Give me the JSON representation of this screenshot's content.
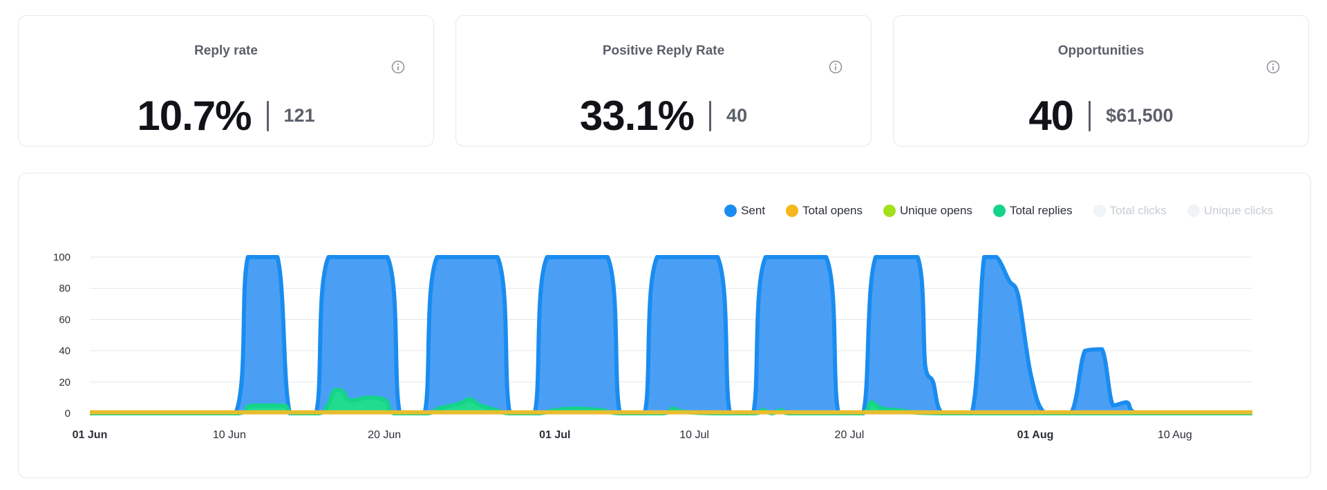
{
  "cards": [
    {
      "title": "Reply rate",
      "primary": "10.7%",
      "secondary": "121"
    },
    {
      "title": "Positive Reply Rate",
      "primary": "33.1%",
      "secondary": "40"
    },
    {
      "title": "Opportunities",
      "primary": "40",
      "secondary": "$61,500"
    }
  ],
  "legend": [
    {
      "label": "Sent",
      "color": "#1a8cf0",
      "active": true
    },
    {
      "label": "Total opens",
      "color": "#f5b71c",
      "active": true
    },
    {
      "label": "Unique opens",
      "color": "#a3e01d",
      "active": true
    },
    {
      "label": "Total replies",
      "color": "#14d38a",
      "active": true
    },
    {
      "label": "Total clicks",
      "color": "#eef4f8",
      "active": false
    },
    {
      "label": "Unique clicks",
      "color": "#eef4f8",
      "active": false
    }
  ],
  "chart_data": {
    "type": "area",
    "ylim": [
      0,
      100
    ],
    "yticks": [
      0,
      20,
      40,
      60,
      80,
      100
    ],
    "xlim_days": [
      0,
      75
    ],
    "xticks": [
      {
        "label": "01 Jun",
        "day": 0,
        "bold": true
      },
      {
        "label": "10 Jun",
        "day": 9,
        "bold": false
      },
      {
        "label": "20 Jun",
        "day": 19,
        "bold": false
      },
      {
        "label": "01 Jul",
        "day": 30,
        "bold": true
      },
      {
        "label": "10 Jul",
        "day": 39,
        "bold": false
      },
      {
        "label": "20 Jul",
        "day": 49,
        "bold": false
      },
      {
        "label": "01 Aug",
        "day": 61,
        "bold": true
      },
      {
        "label": "10 Aug",
        "day": 70,
        "bold": false
      }
    ],
    "grid": true,
    "legend_position": "top-right",
    "series": [
      {
        "name": "Sent",
        "color": "#1a8cf0",
        "fill": "#4a9ff5",
        "points": [
          [
            0,
            0
          ],
          [
            9.4,
            0
          ],
          [
            10.2,
            100
          ],
          [
            12.1,
            100
          ],
          [
            12.9,
            0
          ],
          [
            14.6,
            0
          ],
          [
            15.4,
            100
          ],
          [
            19.2,
            100
          ],
          [
            20,
            0
          ],
          [
            21.6,
            0
          ],
          [
            22.4,
            100
          ],
          [
            26.3,
            100
          ],
          [
            27.1,
            0
          ],
          [
            28.7,
            0
          ],
          [
            29.5,
            100
          ],
          [
            33.4,
            100
          ],
          [
            34.2,
            0
          ],
          [
            35.8,
            0
          ],
          [
            36.6,
            100
          ],
          [
            40.5,
            100
          ],
          [
            41.3,
            0
          ],
          [
            42.8,
            0
          ],
          [
            43.6,
            100
          ],
          [
            47.5,
            100
          ],
          [
            48.3,
            0
          ],
          [
            49.9,
            0
          ],
          [
            50.7,
            100
          ],
          [
            53.4,
            100
          ],
          [
            53.9,
            30
          ],
          [
            54.4,
            20
          ],
          [
            55,
            0
          ],
          [
            56.9,
            0
          ],
          [
            57.7,
            100
          ],
          [
            58.5,
            100
          ],
          [
            59.3,
            85
          ],
          [
            59.9,
            75
          ],
          [
            60.7,
            25
          ],
          [
            61.6,
            0
          ],
          [
            63.3,
            0
          ],
          [
            64.2,
            40
          ],
          [
            65.3,
            41
          ],
          [
            66,
            5
          ],
          [
            66.9,
            7
          ],
          [
            67.6,
            0
          ],
          [
            75,
            0
          ]
        ]
      },
      {
        "name": "Total replies",
        "color": "#14d38a",
        "fill": "#22dc8e",
        "points": [
          [
            0,
            0
          ],
          [
            9.6,
            0
          ],
          [
            10.4,
            5
          ],
          [
            12.5,
            5
          ],
          [
            13,
            0
          ],
          [
            14.8,
            0
          ],
          [
            15.3,
            4
          ],
          [
            15.8,
            15
          ],
          [
            16.3,
            14
          ],
          [
            16.8,
            8
          ],
          [
            18,
            10
          ],
          [
            19.1,
            8
          ],
          [
            19.6,
            0
          ],
          [
            21.8,
            0
          ],
          [
            22.5,
            3
          ],
          [
            23.8,
            6
          ],
          [
            24.5,
            9
          ],
          [
            25.2,
            5
          ],
          [
            26.2,
            2
          ],
          [
            27,
            0
          ],
          [
            29,
            0
          ],
          [
            30,
            2
          ],
          [
            31.2,
            3
          ],
          [
            33,
            2
          ],
          [
            34.1,
            0
          ],
          [
            37,
            0
          ],
          [
            37.6,
            3
          ],
          [
            38.3,
            1
          ],
          [
            40.2,
            0
          ],
          [
            42.9,
            0
          ],
          [
            43.4,
            2
          ],
          [
            44,
            0
          ],
          [
            44.6,
            2
          ],
          [
            45.1,
            0
          ],
          [
            49.8,
            0
          ],
          [
            50.4,
            7
          ],
          [
            51.1,
            3
          ],
          [
            52.2,
            2
          ],
          [
            54.9,
            0
          ],
          [
            75,
            0
          ]
        ]
      },
      {
        "name": "Total opens",
        "color": "#e8bd2e",
        "fill": "#e8bd2e",
        "points": [
          [
            0,
            0.6
          ],
          [
            75,
            0.6
          ]
        ]
      }
    ]
  }
}
